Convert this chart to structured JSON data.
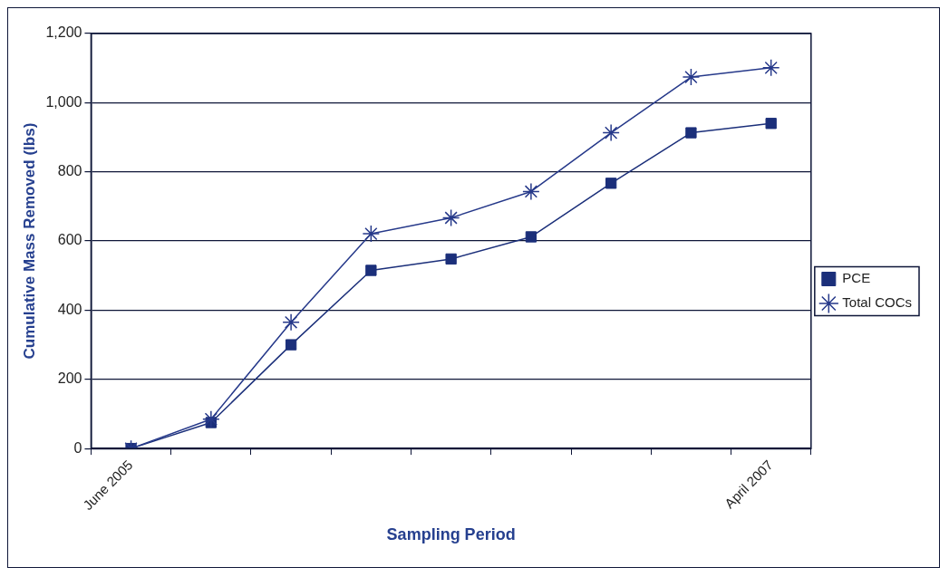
{
  "chart_data": {
    "type": "line",
    "xlabel": "Sampling Period",
    "ylabel": "Cumulative Mass Removed (lbs)",
    "categories": [
      "June 2005",
      null,
      null,
      null,
      null,
      null,
      null,
      null,
      "April 2007"
    ],
    "series": [
      {
        "name": "PCE",
        "color": "#1b2f7a",
        "marker": "square",
        "values": [
          0,
          75,
          300,
          515,
          548,
          612,
          767,
          913,
          940
        ]
      },
      {
        "name": "Total COCs",
        "color": "#26398a",
        "marker": "cross",
        "values": [
          0,
          85,
          365,
          621,
          667,
          743,
          913,
          1074,
          1101
        ]
      }
    ],
    "ylim": [
      0,
      1200
    ],
    "yticks": [
      {
        "value": 0,
        "label": "0"
      },
      {
        "value": 200,
        "label": "200"
      },
      {
        "value": 400,
        "label": "400"
      },
      {
        "value": 600,
        "label": "600"
      },
      {
        "value": 800,
        "label": "800"
      },
      {
        "value": 1000,
        "label": "1,000"
      },
      {
        "value": 1200,
        "label": "1,200"
      }
    ],
    "grid": "y",
    "legend": "right",
    "line_style": "solid"
  }
}
